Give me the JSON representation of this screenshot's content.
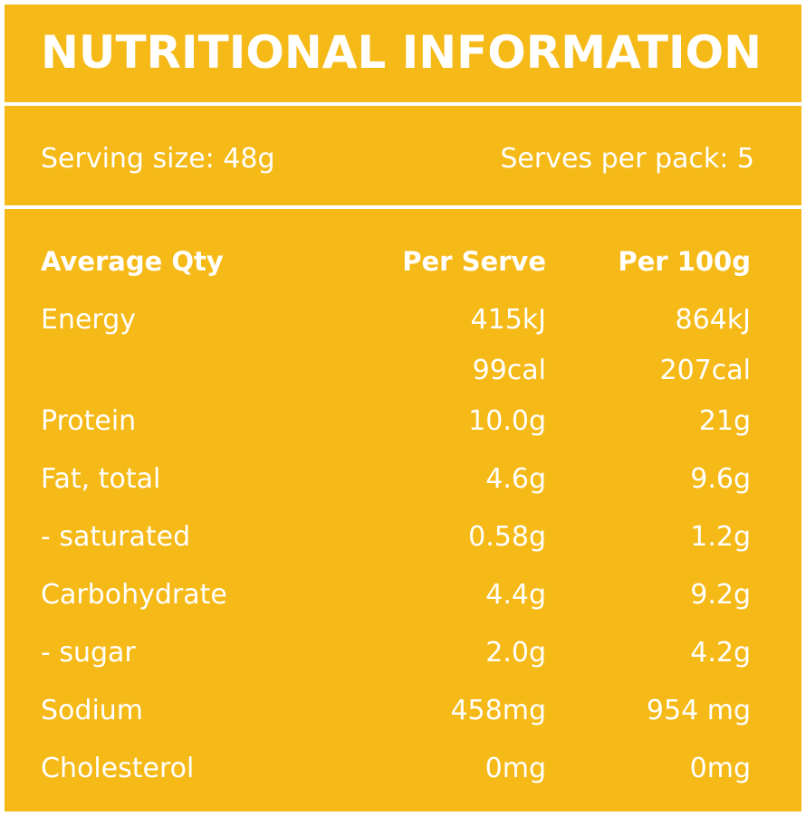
{
  "title": "NUTRITIONAL INFORMATION",
  "serving_size": "Serving size: 48g",
  "serves_per_pack": "Serves per pack: 5",
  "table": {
    "headers": [
      "Average Qty",
      "Per Serve",
      "Per 100g"
    ],
    "rows": [
      {
        "name": "Energy",
        "per_serve": "415kJ",
        "per_100g": "864kJ"
      },
      {
        "name": "",
        "per_serve": "99cal",
        "per_100g": "207cal"
      },
      {
        "name": "Protein",
        "per_serve": "10.0g",
        "per_100g": "21g"
      },
      {
        "name": "Fat, total",
        "per_serve": "4.6g",
        "per_100g": "9.6g"
      },
      {
        "name": "- saturated",
        "per_serve": "0.58g",
        "per_100g": "1.2g"
      },
      {
        "name": "Carbohydrate",
        "per_serve": "4.4g",
        "per_100g": "9.2g"
      },
      {
        "name": "- sugar",
        "per_serve": "2.0g",
        "per_100g": "4.2g"
      },
      {
        "name": "Sodium",
        "per_serve": "458mg",
        "per_100g": "954 mg"
      },
      {
        "name": "Cholesterol",
        "per_serve": "0mg",
        "per_100g": "0mg"
      }
    ]
  },
  "colors": {
    "background": "#F5B918",
    "text": "#FFFFFF",
    "border": "#FFFFFF"
  }
}
